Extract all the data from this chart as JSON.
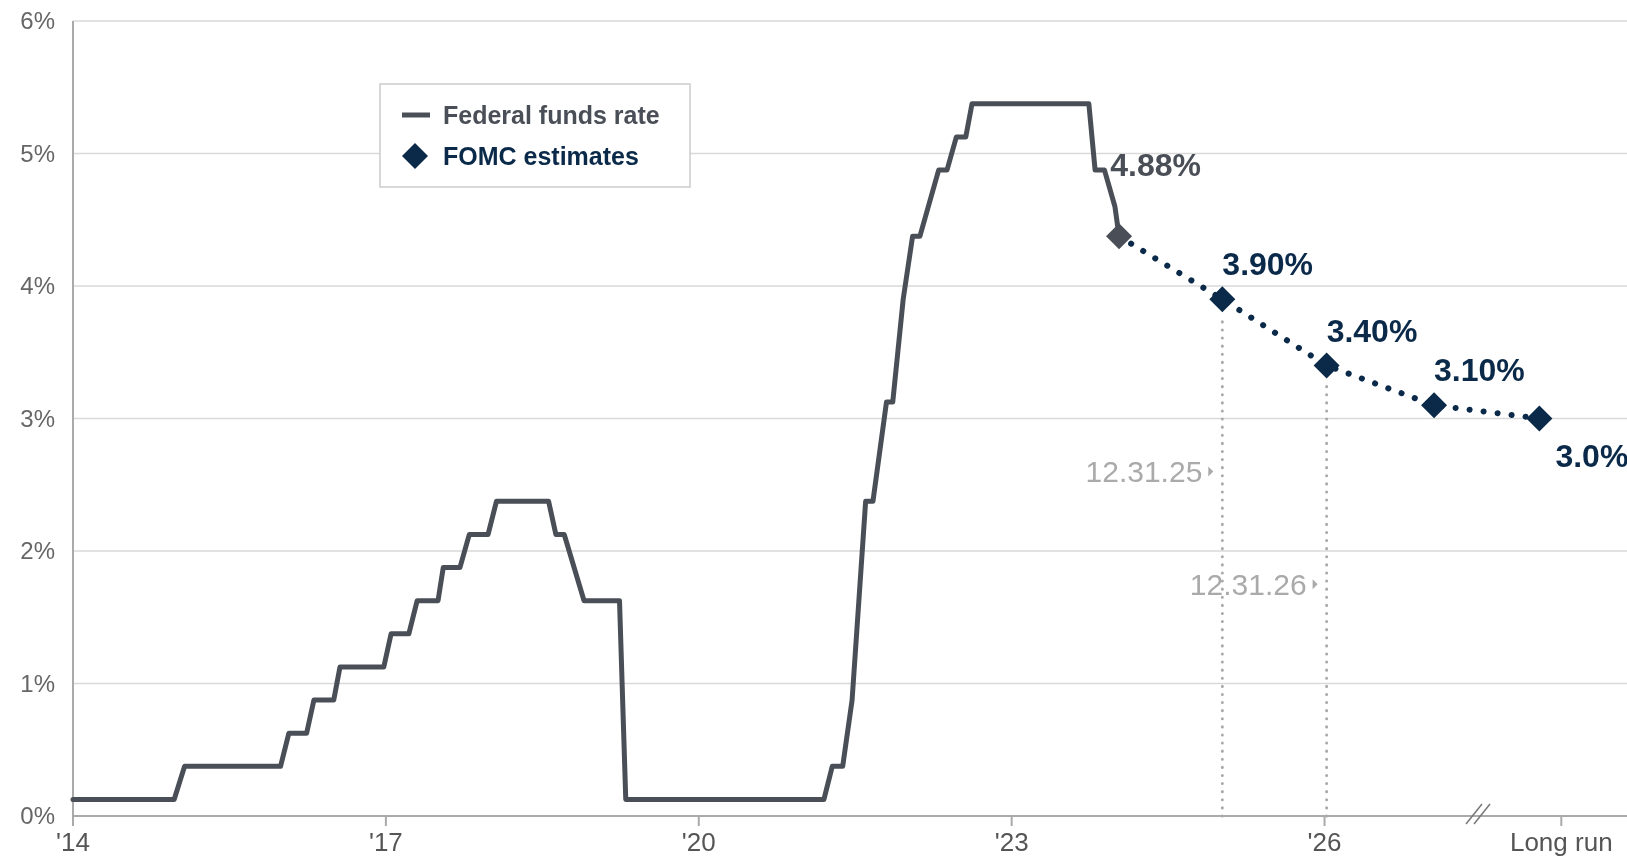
{
  "chart_data": {
    "type": "line",
    "xlim": [
      2014,
      2028.9
    ],
    "ylim": [
      0,
      6
    ],
    "xticks": [
      {
        "value": 2014,
        "label": "'14"
      },
      {
        "value": 2017,
        "label": "'17"
      },
      {
        "value": 2020,
        "label": "'20"
      },
      {
        "value": 2023,
        "label": "'23"
      },
      {
        "value": 2026,
        "label": "'26"
      },
      {
        "value": 2028.27,
        "label": "Long run"
      }
    ],
    "yticks": [
      {
        "value": 0,
        "label": "0%"
      },
      {
        "value": 1,
        "label": "1%"
      },
      {
        "value": 2,
        "label": "2%"
      },
      {
        "value": 3,
        "label": "3%"
      },
      {
        "value": 4,
        "label": "4%"
      },
      {
        "value": 5,
        "label": "5%"
      },
      {
        "value": 6,
        "label": "6%"
      }
    ],
    "grid": "y",
    "legend": "top left",
    "series": [
      {
        "name": "Federal funds rate",
        "color": "#4a4f57",
        "marker": "none",
        "line_style": "solid",
        "x": [
          2014,
          2014.97,
          2015.07,
          2015.99,
          2016.07,
          2016.24,
          2016.31,
          2016.5,
          2016.56,
          2016.98,
          2017.05,
          2017.22,
          2017.3,
          2017.5,
          2017.55,
          2017.71,
          2017.8,
          2017.98,
          2018.06,
          2018.56,
          2018.63,
          2018.71,
          2018.9,
          2019.24,
          2019.3,
          2021.2,
          2021.28,
          2021.38,
          2021.47,
          2021.6,
          2021.67,
          2021.8,
          2021.86,
          2021.96,
          2022.05,
          2022.12,
          2022.3,
          2022.38,
          2022.47,
          2022.56,
          2022.62,
          2023.74,
          2023.8,
          2023.89,
          2023.99,
          2024.03
        ],
        "values": [
          0.125,
          0.125,
          0.375,
          0.375,
          0.625,
          0.625,
          0.875,
          0.875,
          1.125,
          1.125,
          1.375,
          1.375,
          1.625,
          1.625,
          1.875,
          1.875,
          2.125,
          2.125,
          2.375,
          2.375,
          2.125,
          2.125,
          1.625,
          1.625,
          0.125,
          0.125,
          0.375,
          0.375,
          0.875,
          2.375,
          2.375,
          3.125,
          3.125,
          3.9,
          4.375,
          4.375,
          4.875,
          4.875,
          5.125,
          5.125,
          5.375,
          5.375,
          4.875,
          4.875,
          4.6,
          4.375
        ]
      },
      {
        "name": "FOMC estimates",
        "color": "#0b2a4a",
        "colors": [
          "#4a4f57",
          "#0b2a4a",
          "#0b2a4a",
          "#0b2a4a",
          "#0b2a4a"
        ],
        "marker": "diamond",
        "line_style": "dotted",
        "x": [
          2024.03,
          2025.02,
          2026.02,
          2027.05,
          2028.06
        ],
        "values": [
          4.375,
          3.9,
          3.4,
          3.1,
          3.0
        ],
        "value_labels": [
          null,
          "3.90%",
          "3.40%",
          "3.10%",
          "3.0%"
        ]
      }
    ],
    "ref_lines": [
      {
        "axis": "x",
        "value": 2025.02,
        "label": "12.31.25",
        "color": "#aaaaaa",
        "line_style": "dotted"
      },
      {
        "axis": "x",
        "value": 2026.02,
        "label": "12.31.26",
        "color": "#aaaaaa",
        "line_style": "dotted"
      }
    ],
    "annotations": [
      {
        "text": "4.88%",
        "x": 2023.85,
        "y": 4.875
      }
    ]
  }
}
